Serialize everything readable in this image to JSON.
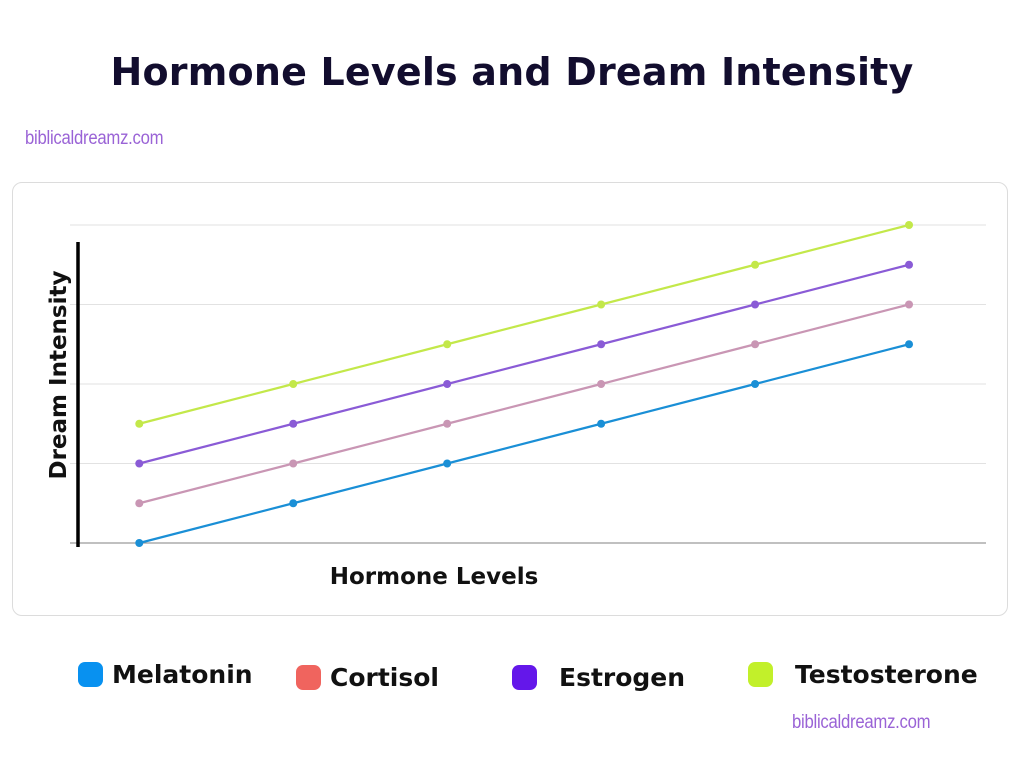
{
  "chart_data": {
    "type": "line",
    "title": "Hormone Levels and Dream Intensity",
    "xlabel": "Hormone Levels",
    "ylabel": "Dream Intensity",
    "x": [
      1,
      2,
      3,
      4,
      5,
      6
    ],
    "xlim": [
      0.55,
      6.5
    ],
    "ylim": [
      0,
      8
    ],
    "grid": true,
    "legend_position": "bottom",
    "series": [
      {
        "name": "Melatonin",
        "values": [
          0,
          1,
          2,
          3,
          4,
          5
        ],
        "color": "#1a8fd6",
        "legend_color": "#0891f0"
      },
      {
        "name": "Cortisol",
        "values": [
          1,
          2,
          3,
          4,
          5,
          6
        ],
        "color": "#c996b4",
        "legend_color": "#f0645e"
      },
      {
        "name": "Estrogen",
        "values": [
          2,
          3,
          4,
          5,
          6,
          7
        ],
        "color": "#8a5bd6",
        "legend_color": "#6417ea"
      },
      {
        "name": "Testosterone",
        "values": [
          3,
          4,
          5,
          6,
          7,
          8
        ],
        "color": "#c3e84a",
        "legend_color": "#c2f02a"
      }
    ]
  },
  "watermarks": {
    "top": "biblicaldreamz.com",
    "bottom": "biblicaldreamz.com"
  }
}
